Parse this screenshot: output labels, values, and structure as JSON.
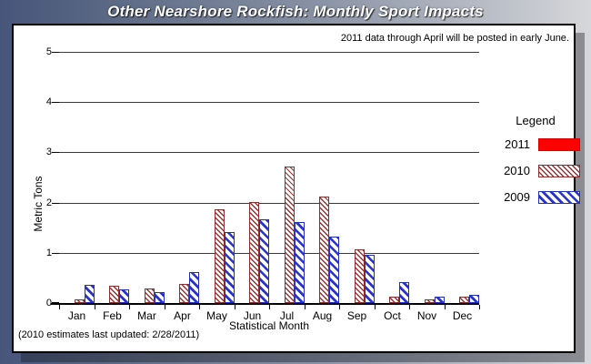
{
  "window": {
    "title": "Other Nearshore Rockfish: Monthly Sport Impacts"
  },
  "annotation": "2011 data through April will be posted in early June.",
  "footnote": "(2010 estimates last updated: 2/28/2011)",
  "legend": {
    "title": "Legend",
    "entries": [
      {
        "label": "2011",
        "style": "solid-red"
      },
      {
        "label": "2010",
        "style": "hatch-dark-red"
      },
      {
        "label": "2009",
        "style": "hatch-blue"
      }
    ]
  },
  "colors": {
    "series_2011": "#ff0000",
    "series_2010": "#993333",
    "series_2009": "#2733cb",
    "frame_dark": "#46557a",
    "frame_light": "#d6d7da",
    "plot_background": "#ffffff"
  },
  "chart_data": {
    "type": "bar",
    "title": "Other Nearshore Rockfish: Monthly Sport Impacts",
    "categories": [
      "Jan",
      "Feb",
      "Mar",
      "Apr",
      "May",
      "Jun",
      "Jul",
      "Aug",
      "Sep",
      "Oct",
      "Nov",
      "Dec"
    ],
    "series": [
      {
        "name": "2011",
        "values": [
          0,
          0,
          0,
          0,
          0,
          0,
          0,
          0,
          0,
          0,
          0,
          0
        ]
      },
      {
        "name": "2010",
        "values": [
          0.05,
          0.33,
          0.27,
          0.36,
          1.85,
          2.0,
          2.7,
          2.1,
          1.05,
          0.1,
          0.05,
          0.1
        ]
      },
      {
        "name": "2009",
        "values": [
          0.35,
          0.25,
          0.2,
          0.6,
          1.4,
          1.65,
          1.6,
          1.3,
          0.95,
          0.4,
          0.1,
          0.15
        ]
      }
    ],
    "xlabel": "Statistical Month",
    "ylabel": "Metric Tons",
    "ylim": [
      0,
      5
    ],
    "yticks": [
      0,
      1,
      2,
      3,
      4,
      5
    ],
    "grid": true,
    "legend_position": "right"
  }
}
